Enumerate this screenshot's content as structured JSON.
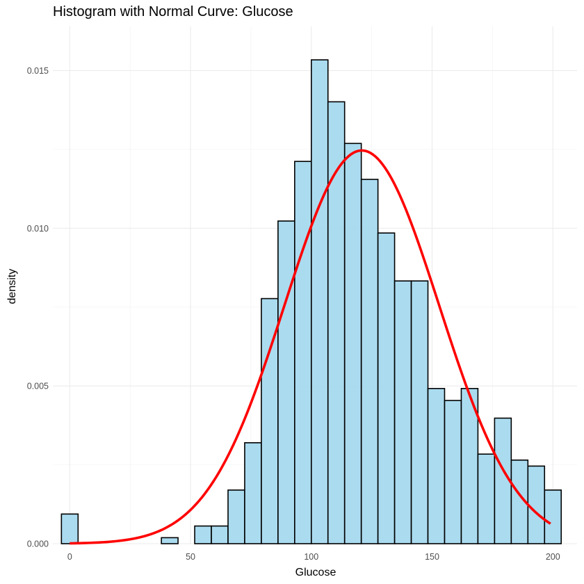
{
  "chart_data": {
    "type": "bar",
    "title": "Histogram with Normal Curve:  Glucose",
    "xlabel": "Glucose",
    "ylabel": "density",
    "xlim": [
      -7,
      210
    ],
    "ylim": [
      0,
      0.0164
    ],
    "x_ticks": [
      0,
      50,
      100,
      150,
      200
    ],
    "x_tick_labels": [
      "0",
      "50",
      "100",
      "150",
      "200"
    ],
    "y_ticks": [
      0,
      0.005,
      0.01,
      0.015
    ],
    "y_tick_labels": [
      "0.000",
      "0.005",
      "0.010",
      "0.015"
    ],
    "grid": true,
    "bin_width": 6.89,
    "bins": [
      {
        "center": 0.0,
        "density": 0.00094
      },
      {
        "center": 6.89,
        "density": 0
      },
      {
        "center": 13.79,
        "density": 0
      },
      {
        "center": 20.69,
        "density": 0
      },
      {
        "center": 27.59,
        "density": 0
      },
      {
        "center": 34.48,
        "density": 0
      },
      {
        "center": 41.38,
        "density": 0.00019
      },
      {
        "center": 48.28,
        "density": 0
      },
      {
        "center": 55.17,
        "density": 0.00056
      },
      {
        "center": 62.07,
        "density": 0.00056
      },
      {
        "center": 68.97,
        "density": 0.0017
      },
      {
        "center": 75.86,
        "density": 0.0032
      },
      {
        "center": 82.76,
        "density": 0.00777
      },
      {
        "center": 89.66,
        "density": 0.01023
      },
      {
        "center": 96.55,
        "density": 0.01212
      },
      {
        "center": 103.45,
        "density": 0.01534
      },
      {
        "center": 110.34,
        "density": 0.01401
      },
      {
        "center": 117.24,
        "density": 0.01269
      },
      {
        "center": 124.14,
        "density": 0.01155
      },
      {
        "center": 131.03,
        "density": 0.00985
      },
      {
        "center": 137.93,
        "density": 0.00833
      },
      {
        "center": 144.83,
        "density": 0.00833
      },
      {
        "center": 151.72,
        "density": 0.00492
      },
      {
        "center": 158.62,
        "density": 0.00454
      },
      {
        "center": 165.52,
        "density": 0.00492
      },
      {
        "center": 172.41,
        "density": 0.00284
      },
      {
        "center": 179.31,
        "density": 0.00398
      },
      {
        "center": 186.21,
        "density": 0.00265
      },
      {
        "center": 193.1,
        "density": 0.00246
      },
      {
        "center": 200.0,
        "density": 0.0017
      }
    ],
    "normal_curve": {
      "mean": 120.9,
      "sd": 32.0,
      "x_range": [
        0,
        199
      ]
    },
    "colors": {
      "bar_fill": "#a6d9ee",
      "bar_outline": "#000000",
      "curve": "#ff0000",
      "grid": "#ebebeb"
    }
  }
}
